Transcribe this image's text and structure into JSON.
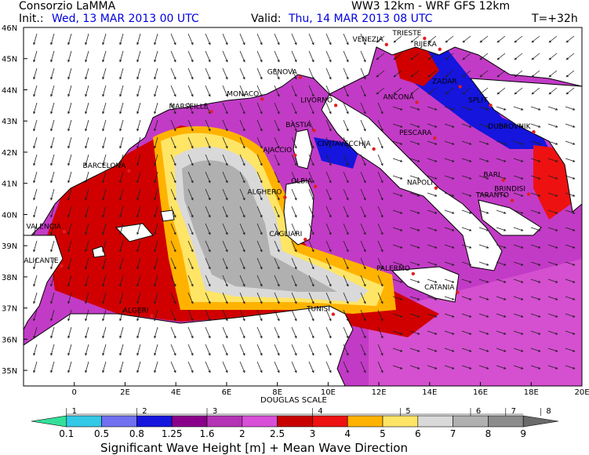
{
  "header": {
    "org": "Consorzio LaMMA",
    "model": "WW3 12km - WRF GFS 12km",
    "init_label": "Init.:",
    "init_value": "Wed, 13 MAR 2013  00 UTC",
    "valid_label": "Valid:",
    "valid_value": "Thu, 14 MAR 2013  08 UTC",
    "lead": "T=+32h"
  },
  "axes": {
    "lat_labels": [
      "46N",
      "45N",
      "44N",
      "43N",
      "42N",
      "41N",
      "40N",
      "39N",
      "38N",
      "37N",
      "36N",
      "35N"
    ],
    "lon_labels": [
      "0",
      "2E",
      "4E",
      "6E",
      "8E",
      "10E",
      "12E",
      "14E",
      "16E",
      "18E",
      "20E"
    ]
  },
  "cities": [
    {
      "name": "TRIESTE",
      "lon": 13.8,
      "lat": 45.65
    },
    {
      "name": "VENEZIA",
      "lon": 12.3,
      "lat": 45.45
    },
    {
      "name": "RIJEKA",
      "lon": 14.4,
      "lat": 45.3
    },
    {
      "name": "GENOVA",
      "lon": 8.9,
      "lat": 44.4
    },
    {
      "name": "MONACO",
      "lon": 7.4,
      "lat": 43.7
    },
    {
      "name": "MARSEILLE",
      "lon": 5.4,
      "lat": 43.3
    },
    {
      "name": "LIVORNO",
      "lon": 10.3,
      "lat": 43.5
    },
    {
      "name": "ANCONA",
      "lon": 13.5,
      "lat": 43.6
    },
    {
      "name": "ZADAR",
      "lon": 15.2,
      "lat": 44.1
    },
    {
      "name": "SPLIT",
      "lon": 16.4,
      "lat": 43.5
    },
    {
      "name": "DUBROVNIK",
      "lon": 18.1,
      "lat": 42.65
    },
    {
      "name": "BASTIA",
      "lon": 9.45,
      "lat": 42.7
    },
    {
      "name": "AJACCIO",
      "lon": 8.7,
      "lat": 41.9
    },
    {
      "name": "PESCARA",
      "lon": 14.2,
      "lat": 42.45
    },
    {
      "name": "CIVITAVECCHIA",
      "lon": 11.8,
      "lat": 42.1
    },
    {
      "name": "BARCELONA",
      "lon": 2.15,
      "lat": 41.4
    },
    {
      "name": "OLBIA",
      "lon": 9.5,
      "lat": 40.9
    },
    {
      "name": "ALGHERO",
      "lon": 8.3,
      "lat": 40.55
    },
    {
      "name": "NAPOLI",
      "lon": 14.25,
      "lat": 40.85
    },
    {
      "name": "BARI",
      "lon": 16.9,
      "lat": 41.1
    },
    {
      "name": "BRINDISI",
      "lon": 17.9,
      "lat": 40.65
    },
    {
      "name": "TARANTO",
      "lon": 17.25,
      "lat": 40.45
    },
    {
      "name": "VALENCIA",
      "lon": -0.4,
      "lat": 39.45
    },
    {
      "name": "CAGLIARI",
      "lon": 9.1,
      "lat": 39.2
    },
    {
      "name": "ALICANTE",
      "lon": -0.5,
      "lat": 38.35
    },
    {
      "name": "PALERMO",
      "lon": 13.35,
      "lat": 38.1
    },
    {
      "name": "CATANIA",
      "lon": 15.1,
      "lat": 37.5
    },
    {
      "name": "ALGERI",
      "lon": 3.05,
      "lat": 36.75
    },
    {
      "name": "TUNISI",
      "lon": 10.2,
      "lat": 36.8
    }
  ],
  "colorbar": {
    "douglas_title": "DOUGLAS SCALE",
    "douglas": [
      "1",
      "2",
      "3",
      "4",
      "5",
      "6",
      "7",
      "8"
    ],
    "colors": [
      "#33e09a",
      "#33c8e6",
      "#7070f0",
      "#1515dd",
      "#8a008a",
      "#b533b5",
      "#d84fd8",
      "#c80000",
      "#ee1111",
      "#ffb300",
      "#ffe566",
      "#d9d9d9",
      "#b0b0b0",
      "#8c8c8c",
      "#6a6a6a"
    ],
    "values": [
      "0.1",
      "0.5",
      "0.8",
      "1.25",
      "1.6",
      "2",
      "2.5",
      "3",
      "4",
      "5",
      "6",
      "7",
      "8",
      "9"
    ],
    "title": "Significant Wave Height [m] + Mean Wave Direction"
  }
}
